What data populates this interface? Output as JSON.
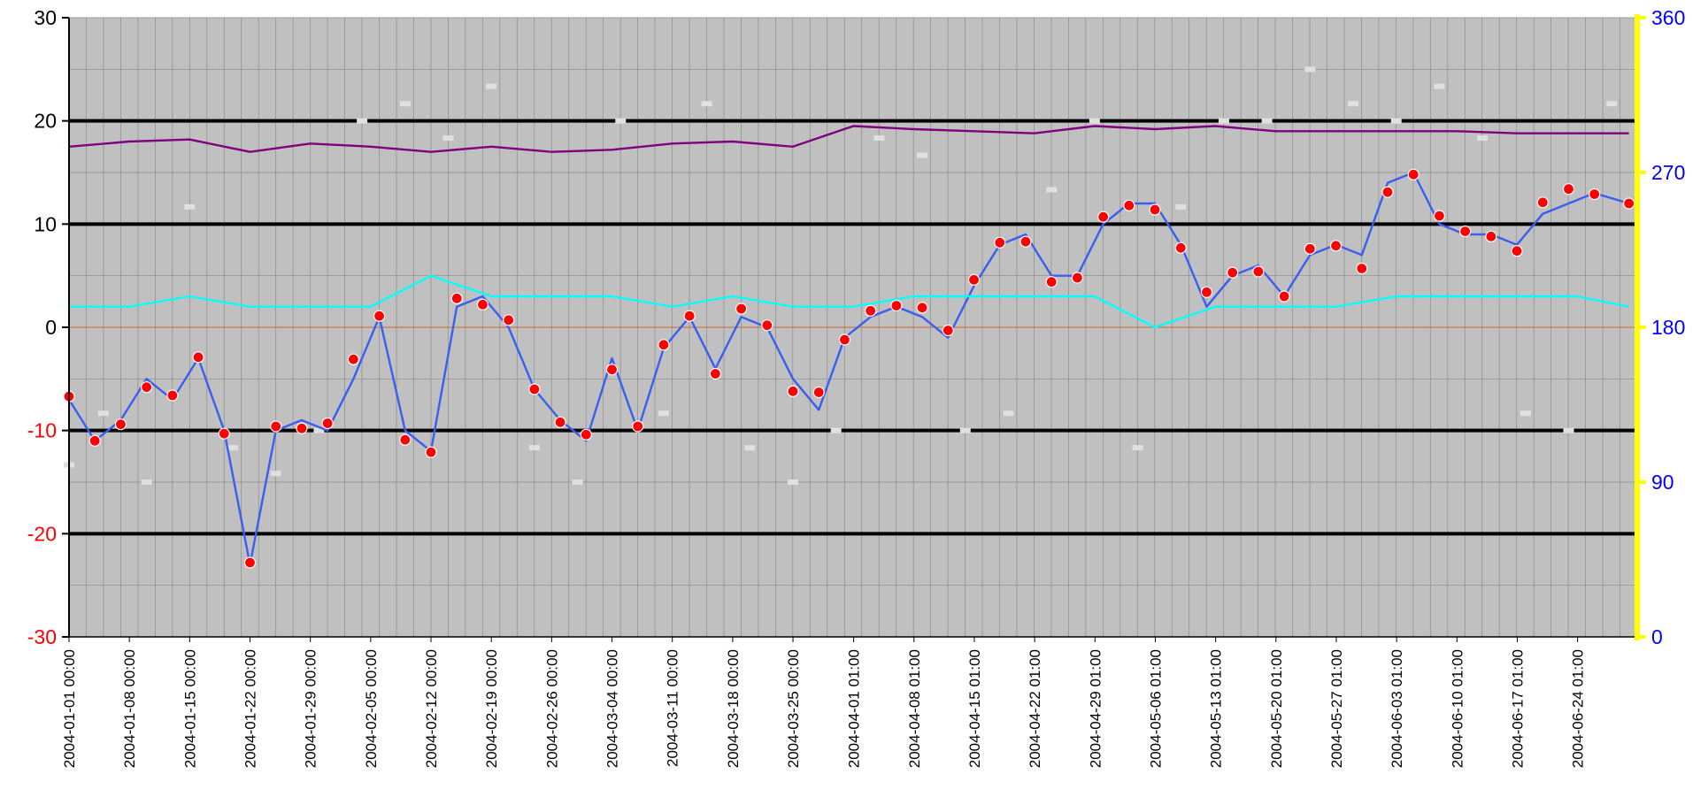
{
  "chart_data": {
    "type": "line",
    "title": "",
    "xlabel": "",
    "ylabel": "",
    "x_start": "2004-01-01 00:00",
    "x_end": "2004-06-30 23:00",
    "x_tick_labels": [
      "2004-01-01 00:00",
      "2004-01-08 00:00",
      "2004-01-15 00:00",
      "2004-01-22 00:00",
      "2004-01-29 00:00",
      "2004-02-05 00:00",
      "2004-02-12 00:00",
      "2004-02-19 00:00",
      "2004-02-26 00:00",
      "2004-03-04 00:00",
      "2004-03-11 00:00",
      "2004-03-18 00:00",
      "2004-03-25 00:00",
      "2004-04-01 01:00",
      "2004-04-08 01:00",
      "2004-04-15 01:00",
      "2004-04-22 01:00",
      "2004-04-29 01:00",
      "2004-05-06 01:00",
      "2004-05-13 01:00",
      "2004-05-20 01:00",
      "2004-05-27 01:00",
      "2004-06-03 01:00",
      "2004-06-10 01:00",
      "2004-06-17 01:00",
      "2004-06-24 01:00"
    ],
    "y_left": {
      "ylim": [
        -30,
        30
      ],
      "ticks": [
        "30",
        "20",
        "10",
        "0",
        "-10",
        "-20",
        "-30"
      ],
      "positive_color": "#000000",
      "negative_color": "#ff0000"
    },
    "y_right": {
      "ylim": [
        0,
        360
      ],
      "ticks": [
        "360",
        "270",
        "180",
        "90",
        "0"
      ],
      "color": "#0000ff",
      "axis_color": "#ffff00"
    },
    "grid": true,
    "colors": {
      "plot_background": "#c0c0c0",
      "major_gridline": "#000000",
      "minor_gridline": "#8a8a8a",
      "zero_line": "#cc6633"
    },
    "series": [
      {
        "color": "#3a5ff0",
        "axis": "left",
        "style": "line",
        "x": [
          "2004-01-01",
          "2004-01-04",
          "2004-01-07",
          "2004-01-10",
          "2004-01-13",
          "2004-01-16",
          "2004-01-19",
          "2004-01-22",
          "2004-01-25",
          "2004-01-28",
          "2004-01-31",
          "2004-02-03",
          "2004-02-06",
          "2004-02-09",
          "2004-02-12",
          "2004-02-15",
          "2004-02-18",
          "2004-02-21",
          "2004-02-24",
          "2004-02-27",
          "2004-03-01",
          "2004-03-04",
          "2004-03-07",
          "2004-03-10",
          "2004-03-13",
          "2004-03-16",
          "2004-03-19",
          "2004-03-22",
          "2004-03-25",
          "2004-03-28",
          "2004-03-31",
          "2004-04-03",
          "2004-04-06",
          "2004-04-09",
          "2004-04-12",
          "2004-04-15",
          "2004-04-18",
          "2004-04-21",
          "2004-04-24",
          "2004-04-27",
          "2004-04-30",
          "2004-05-03",
          "2004-05-06",
          "2004-05-09",
          "2004-05-12",
          "2004-05-15",
          "2004-05-18",
          "2004-05-21",
          "2004-05-24",
          "2004-05-27",
          "2004-05-30",
          "2004-06-02",
          "2004-06-05",
          "2004-06-08",
          "2004-06-11",
          "2004-06-14",
          "2004-06-17",
          "2004-06-20",
          "2004-06-23",
          "2004-06-26",
          "2004-06-30"
        ],
        "values": [
          -7,
          -11,
          -9,
          -5,
          -7,
          -3,
          -10,
          -23,
          -10,
          -9,
          -10,
          -5,
          1,
          -10,
          -12,
          2,
          3,
          0,
          -6,
          -9,
          -11,
          -3,
          -10,
          -2,
          1,
          -4,
          1,
          0,
          -5,
          -8,
          -1,
          1,
          2,
          1,
          -1,
          4,
          8,
          9,
          5,
          5,
          10,
          12,
          12,
          8,
          2,
          5,
          6,
          3,
          7,
          8,
          7,
          14,
          15,
          10,
          9,
          9,
          8,
          11,
          12,
          13,
          12
        ]
      },
      {
        "color": "#ff0000",
        "axis": "left",
        "style": "markers",
        "x": [
          "2004-01-01",
          "2004-01-04",
          "2004-01-07",
          "2004-01-10",
          "2004-01-13",
          "2004-01-16",
          "2004-01-19",
          "2004-01-22",
          "2004-01-25",
          "2004-01-28",
          "2004-01-31",
          "2004-02-03",
          "2004-02-06",
          "2004-02-09",
          "2004-02-12",
          "2004-02-15",
          "2004-02-18",
          "2004-02-21",
          "2004-02-24",
          "2004-02-27",
          "2004-03-01",
          "2004-03-04",
          "2004-03-07",
          "2004-03-10",
          "2004-03-13",
          "2004-03-16",
          "2004-03-19",
          "2004-03-22",
          "2004-03-25",
          "2004-03-28",
          "2004-03-31",
          "2004-04-03",
          "2004-04-06",
          "2004-04-09",
          "2004-04-12",
          "2004-04-15",
          "2004-04-18",
          "2004-04-21",
          "2004-04-24",
          "2004-04-27",
          "2004-04-30",
          "2004-05-03",
          "2004-05-06",
          "2004-05-09",
          "2004-05-12",
          "2004-05-15",
          "2004-05-18",
          "2004-05-21",
          "2004-05-24",
          "2004-05-27",
          "2004-05-30",
          "2004-06-02",
          "2004-06-05",
          "2004-06-08",
          "2004-06-11",
          "2004-06-14",
          "2004-06-17",
          "2004-06-20",
          "2004-06-23",
          "2004-06-26",
          "2004-06-30"
        ],
        "values": [
          -6.7,
          -11,
          -9.4,
          -5.8,
          -6.6,
          -2.9,
          -10.3,
          -22.8,
          -9.6,
          -9.8,
          -9.3,
          -3.1,
          1.1,
          -10.9,
          -12.1,
          2.8,
          2.2,
          0.7,
          -6,
          -9.2,
          -10.4,
          -4.1,
          -9.6,
          -1.7,
          1.1,
          -4.5,
          1.8,
          0.2,
          -6.2,
          -6.3,
          -1.2,
          1.6,
          2.1,
          1.9,
          -0.3,
          4.6,
          8.2,
          8.3,
          4.4,
          4.8,
          10.7,
          11.8,
          11.4,
          7.7,
          3.4,
          5.3,
          5.4,
          3,
          7.6,
          7.9,
          5.7,
          13.1,
          14.8,
          10.8,
          9.3,
          8.8,
          7.4,
          12.1,
          13.4,
          12.9,
          12
        ]
      },
      {
        "color": "#00ffff",
        "axis": "left",
        "style": "line",
        "x": [
          "2004-01-01",
          "2004-01-08",
          "2004-01-15",
          "2004-01-22",
          "2004-01-29",
          "2004-02-05",
          "2004-02-12",
          "2004-02-19",
          "2004-02-26",
          "2004-03-04",
          "2004-03-11",
          "2004-03-18",
          "2004-03-25",
          "2004-04-01",
          "2004-04-08",
          "2004-04-15",
          "2004-04-22",
          "2004-04-29",
          "2004-05-06",
          "2004-05-13",
          "2004-05-20",
          "2004-05-27",
          "2004-06-03",
          "2004-06-10",
          "2004-06-17",
          "2004-06-24",
          "2004-06-30"
        ],
        "values": [
          2,
          2,
          3,
          2,
          2,
          2,
          5,
          3,
          3,
          3,
          2,
          3,
          2,
          2,
          3,
          3,
          3,
          3,
          0,
          2,
          2,
          2,
          3,
          3,
          3,
          3,
          2
        ]
      },
      {
        "color": "#800080",
        "axis": "left",
        "style": "line",
        "x": [
          "2004-01-01",
          "2004-01-08",
          "2004-01-15",
          "2004-01-22",
          "2004-01-29",
          "2004-02-05",
          "2004-02-12",
          "2004-02-19",
          "2004-02-26",
          "2004-03-04",
          "2004-03-11",
          "2004-03-18",
          "2004-03-25",
          "2004-04-01",
          "2004-04-08",
          "2004-04-15",
          "2004-04-22",
          "2004-04-29",
          "2004-05-06",
          "2004-05-13",
          "2004-05-20",
          "2004-05-27",
          "2004-06-03",
          "2004-06-10",
          "2004-06-17",
          "2004-06-24",
          "2004-06-30"
        ],
        "values": [
          17.5,
          18,
          18.2,
          17,
          17.8,
          17.5,
          17,
          17.5,
          17,
          17.2,
          17.8,
          18,
          17.5,
          19.5,
          19.2,
          19,
          18.8,
          19.5,
          19.2,
          19.5,
          19,
          19,
          19,
          19,
          18.8,
          18.8,
          18.8
        ]
      }
    ],
    "scatter_series": [
      {
        "color": "#e0e0e0",
        "axis": "right",
        "style": "markers",
        "x": [
          "2004-01-01",
          "2004-01-05",
          "2004-01-10",
          "2004-01-15",
          "2004-01-20",
          "2004-01-25",
          "2004-01-30",
          "2004-02-04",
          "2004-02-09",
          "2004-02-14",
          "2004-02-19",
          "2004-02-24",
          "2004-02-29",
          "2004-03-05",
          "2004-03-10",
          "2004-03-15",
          "2004-03-20",
          "2004-03-25",
          "2004-03-30",
          "2004-04-04",
          "2004-04-09",
          "2004-04-14",
          "2004-04-19",
          "2004-04-24",
          "2004-04-29",
          "2004-05-04",
          "2004-05-09",
          "2004-05-14",
          "2004-05-19",
          "2004-05-24",
          "2004-05-29",
          "2004-06-03",
          "2004-06-08",
          "2004-06-13",
          "2004-06-18",
          "2004-06-23",
          "2004-06-28"
        ],
        "values": [
          100,
          130,
          90,
          250,
          110,
          95,
          120,
          300,
          310,
          290,
          320,
          110,
          90,
          300,
          130,
          310,
          110,
          90,
          120,
          290,
          280,
          120,
          130,
          260,
          300,
          110,
          250,
          300,
          300,
          330,
          310,
          300,
          320,
          290,
          130,
          120,
          310
        ]
      }
    ]
  }
}
